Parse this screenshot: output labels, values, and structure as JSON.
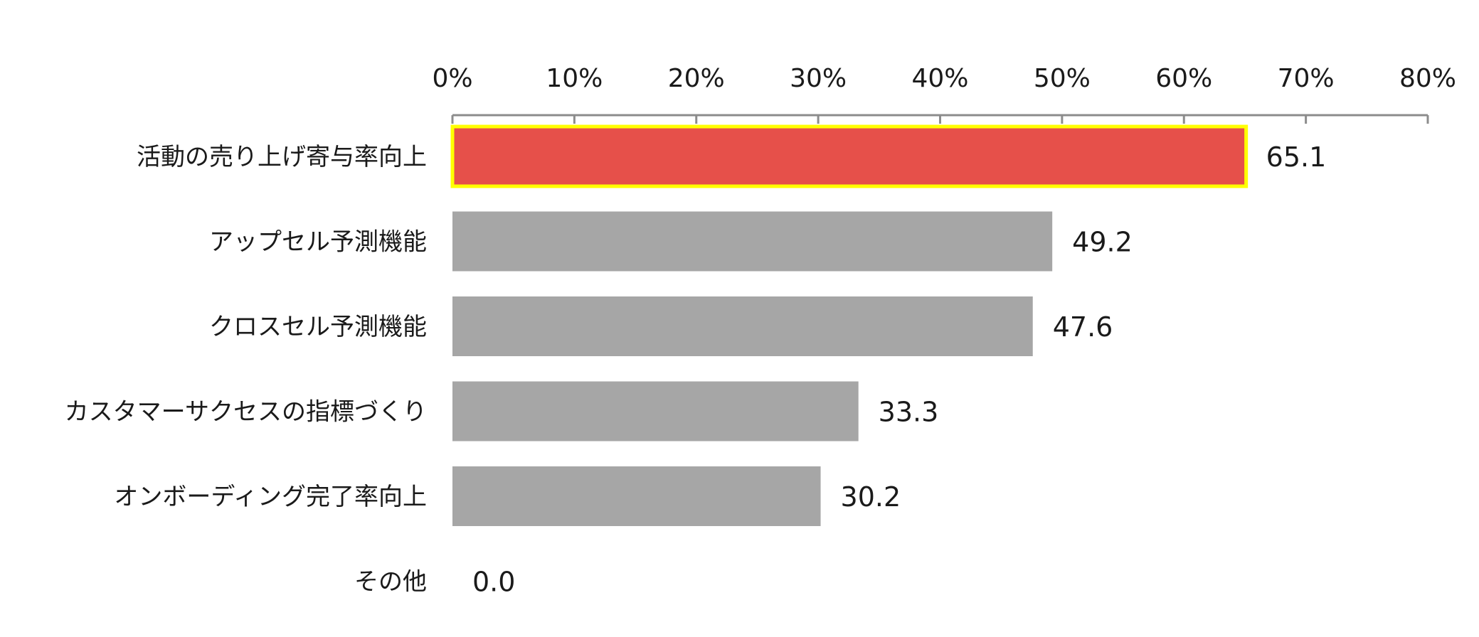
{
  "chart_data": {
    "type": "bar",
    "orientation": "horizontal",
    "categories": [
      "活動の売り上げ寄与率向上",
      "アップセル予測機能",
      "クロスセル予測機能",
      "カスタマーサクセスの指標づくり",
      "オンボーディング完了率向上",
      "その他"
    ],
    "values": [
      65.1,
      49.2,
      47.6,
      33.3,
      30.2,
      0.0
    ],
    "value_labels": [
      "65.1",
      "49.2",
      "47.6",
      "33.3",
      "30.2",
      "0.0"
    ],
    "x_ticks": [
      "0%",
      "10%",
      "20%",
      "30%",
      "40%",
      "50%",
      "60%",
      "70%",
      "80%"
    ],
    "xlim": [
      0,
      80
    ],
    "x_axis_position": "top",
    "grid": false,
    "legend": "none",
    "highlight_index": 0,
    "colors": {
      "highlight_bar": "#e6504a",
      "highlight_border": "#ffff00",
      "bar": "#a6a6a6",
      "axis": "#8c8c8c"
    }
  }
}
